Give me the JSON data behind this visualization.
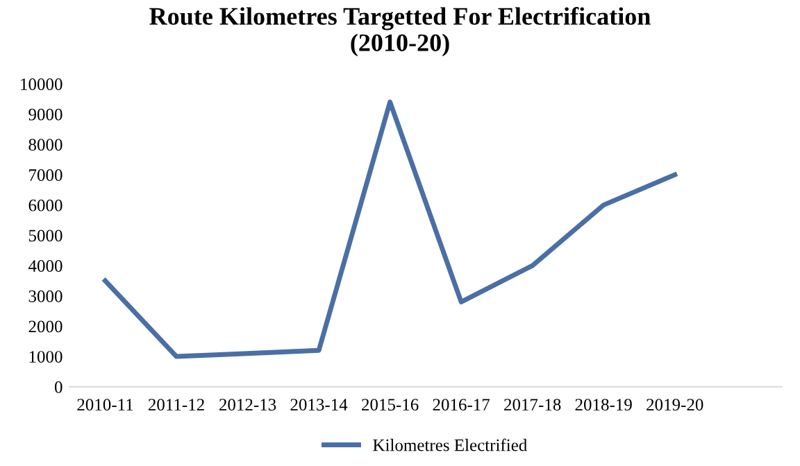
{
  "chart_data": {
    "type": "line",
    "title": "Route Kilometres Targetted For Electrification\n(2010-20)",
    "categories": [
      "2010-11",
      "2011-12",
      "2012-13",
      "2013-14",
      "2015-16",
      "2016-17",
      "2017-18",
      "2018-19",
      "2019-20",
      null
    ],
    "series": [
      {
        "name": "Kilometres Electrified",
        "color": "#4a6fa5",
        "values": [
          3500,
          1000,
          1100,
          1200,
          9400,
          2800,
          4000,
          6000,
          7000,
          null
        ]
      }
    ],
    "ylim": [
      0,
      10000
    ],
    "yticks": [
      0,
      1000,
      2000,
      3000,
      4000,
      5000,
      6000,
      7000,
      8000,
      9000,
      10000
    ],
    "grid": false,
    "legend": "bottom",
    "marker": "none",
    "line_style": "solid"
  }
}
